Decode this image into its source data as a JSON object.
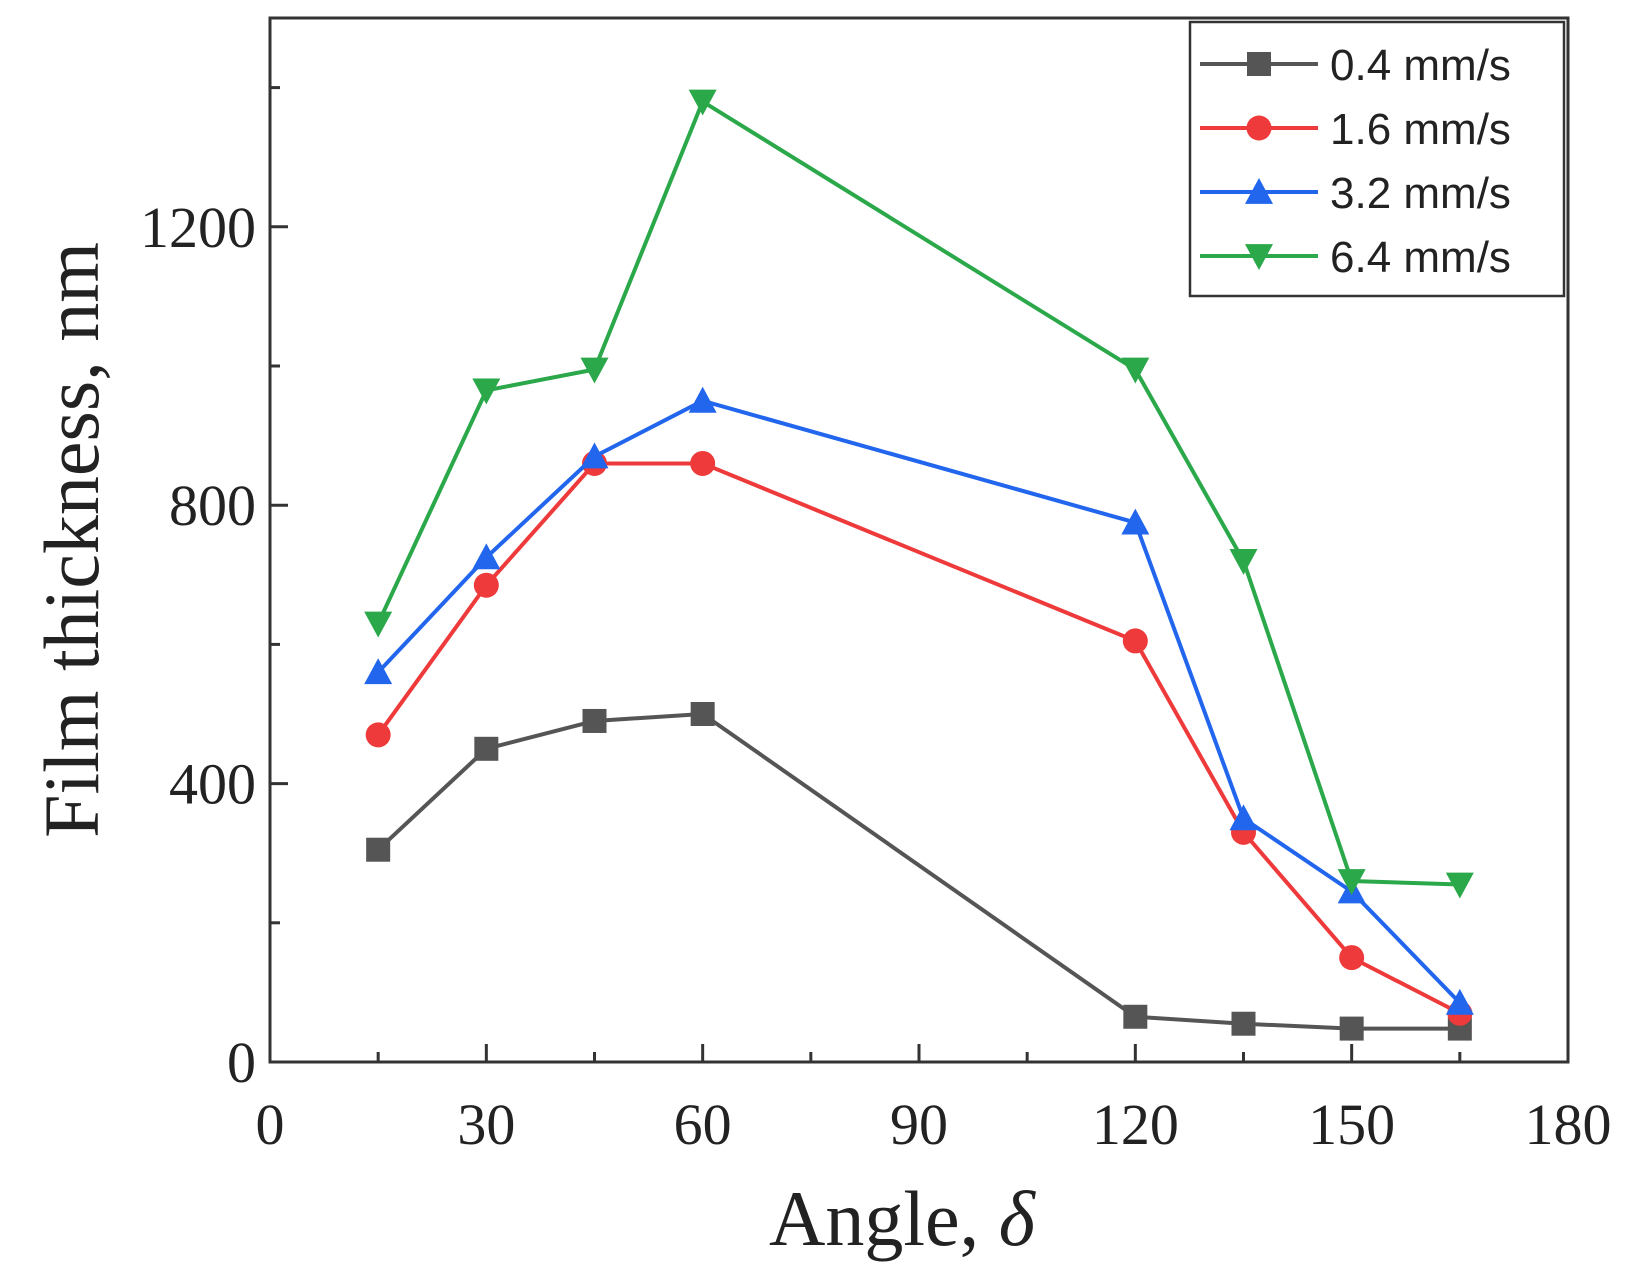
{
  "chart_data": {
    "type": "line",
    "title": "",
    "xlabel": "Angle, ",
    "xlabel_symbol": "δ",
    "ylabel": "Film thickness, nm",
    "xlim": [
      0,
      180
    ],
    "ylim": [
      0,
      1500
    ],
    "xticks": [
      0,
      30,
      60,
      90,
      120,
      150,
      180
    ],
    "yticks": [
      0,
      400,
      800,
      1200
    ],
    "x": [
      15,
      30,
      45,
      60,
      120,
      135,
      150,
      165
    ],
    "grid": false,
    "legend_position": "top-right",
    "series": [
      {
        "name": "0.4 mm/s",
        "color": "#555555",
        "marker": "square",
        "values": [
          305,
          450,
          490,
          500,
          65,
          55,
          48,
          48
        ]
      },
      {
        "name": "1.6 mm/s",
        "color": "#ee3a3a",
        "marker": "circle",
        "values": [
          470,
          685,
          860,
          860,
          605,
          330,
          150,
          70
        ]
      },
      {
        "name": "3.2 mm/s",
        "color": "#2266ee",
        "marker": "triangle-up",
        "values": [
          560,
          725,
          870,
          950,
          775,
          350,
          245,
          85
        ]
      },
      {
        "name": "6.4 mm/s",
        "color": "#2aa84a",
        "marker": "triangle-down",
        "values": [
          630,
          965,
          995,
          1380,
          995,
          720,
          260,
          255
        ]
      }
    ]
  }
}
